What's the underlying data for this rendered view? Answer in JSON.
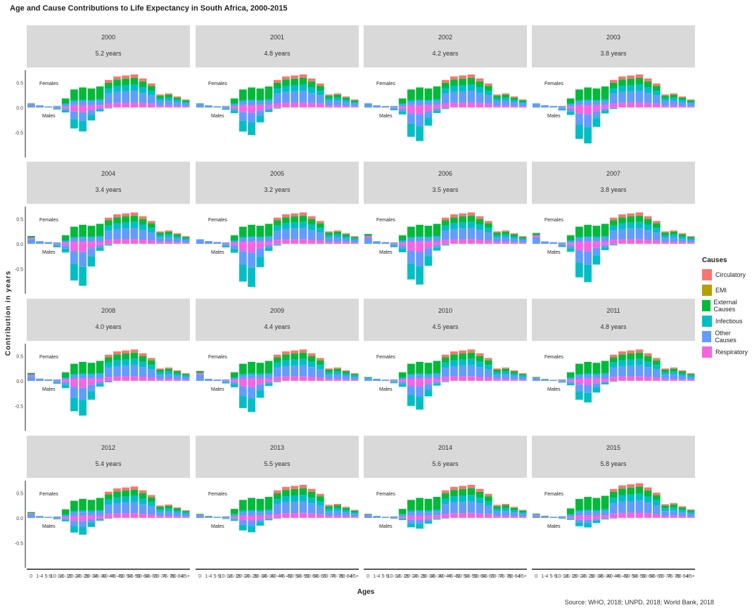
{
  "title": "Age and Cause Contributions to Life Expectancy in South Africa, 2000-2015",
  "ylabel": "Contribution in years",
  "xlabel": "Ages",
  "source": "Source: WHO, 2018; UNPD, 2018; World Bank, 2018",
  "legend": {
    "title": "Causes",
    "items": [
      {
        "name": "Circulatory",
        "color": "#f8766d"
      },
      {
        "name": "EMI",
        "color": "#b79f00"
      },
      {
        "name": "External Causes",
        "color": "#00ba38"
      },
      {
        "name": "Infectious",
        "color": "#00bfc4"
      },
      {
        "name": "Other Causes",
        "color": "#619cff"
      },
      {
        "name": "Respiratory",
        "color": "#f564e3"
      }
    ]
  },
  "chart_data": {
    "type": "bar",
    "stacked": true,
    "facets": [
      "2000",
      "2001",
      "2002",
      "2003",
      "2004",
      "2005",
      "2006",
      "2007",
      "2008",
      "2009",
      "2010",
      "2011",
      "2012",
      "2013",
      "2014",
      "2015"
    ],
    "facet_subtitles": [
      "5.2 years",
      "4.8 years",
      "4.2 years",
      "3.8 years",
      "3.4 years",
      "3.2 years",
      "3.5 years",
      "3.8 years",
      "4.0 years",
      "4.4 years",
      "4.5 years",
      "4.8 years",
      "5.4 years",
      "5.5 years",
      "5.6 years",
      "5.8 years"
    ],
    "age_groups": [
      "0",
      "1-4",
      "5-9",
      "10-14",
      "15-19",
      "20-24",
      "25-29",
      "30-34",
      "35-39",
      "40-44",
      "45-49",
      "50-54",
      "55-59",
      "60-64",
      "65-69",
      "70-74",
      "75-79",
      "80-84",
      "85+"
    ],
    "x_tick_labels": [
      "0",
      "1-4",
      "5-9",
      "10-14",
      "15-19",
      "20-24",
      "25-29",
      "30-34",
      "35-39",
      "40-44",
      "45-49",
      "50-54",
      "55-59",
      "60-64",
      "65-69",
      "70-74",
      "75-79",
      "80-84",
      "85+"
    ],
    "y_ticks": [
      "0.5",
      "0.0",
      "-0.5"
    ],
    "ylim": [
      -1.0,
      0.8
    ],
    "sex_labels": {
      "top": "Females",
      "bottom": "Males"
    },
    "causes": [
      "Circulatory",
      "EMI",
      "External Causes",
      "Infectious",
      "Other Causes",
      "Respiratory"
    ],
    "female_profile": [
      0.08,
      0.04,
      0.02,
      0.03,
      0.18,
      0.36,
      0.4,
      0.38,
      0.42,
      0.55,
      0.62,
      0.64,
      0.66,
      0.58,
      0.48,
      0.26,
      0.28,
      0.22,
      0.16
    ],
    "male_profile": [
      0.05,
      0.03,
      0.02,
      -0.04,
      -0.1,
      -0.42,
      -0.48,
      -0.26,
      -0.08,
      -0.02,
      0.0,
      0.0,
      0.0,
      0.0,
      0.0,
      0.0,
      0.0,
      0.0,
      0.0
    ],
    "female_scale": [
      1.0,
      1.0,
      1.0,
      1.0,
      0.95,
      0.95,
      0.95,
      0.95,
      0.95,
      0.95,
      0.95,
      0.95,
      0.95,
      1.0,
      1.0,
      1.05
    ],
    "male_scale": [
      1.0,
      1.15,
      1.4,
      1.5,
      1.75,
      1.8,
      1.7,
      1.6,
      1.45,
      1.3,
      1.2,
      0.9,
      0.7,
      0.6,
      0.45,
      0.4
    ],
    "infant_boost": [
      0.0,
      0.0,
      0.0,
      0.0,
      0.08,
      0.0,
      0.12,
      0.14,
      0.08,
      0.12,
      0.0,
      0.0,
      0.04,
      0.0,
      0.0,
      0.0
    ]
  }
}
